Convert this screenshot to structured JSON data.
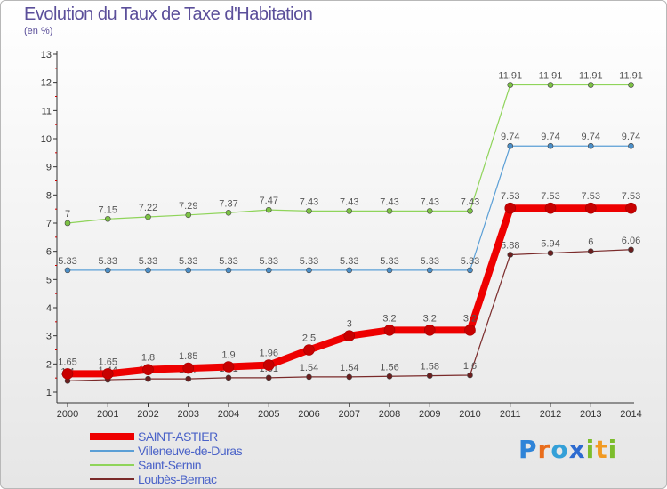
{
  "header": {
    "title": "Evolution du Taux de Taxe d'Habitation",
    "unit": "(en %)"
  },
  "brand": {
    "letters": [
      "P",
      "r",
      "o",
      "x",
      "i",
      "t",
      "i"
    ],
    "colors": [
      "#2f84d8",
      "#e96d1c",
      "#34a0d8",
      "#2d6bd0",
      "#7cbd2c",
      "#f19a22",
      "#7cbd2c"
    ]
  },
  "chart_data": {
    "type": "line",
    "x": [
      "2000",
      "2001",
      "2002",
      "2003",
      "2004",
      "2005",
      "2006",
      "2007",
      "2008",
      "2009",
      "2010",
      "2011",
      "2012",
      "2013",
      "2014"
    ],
    "ylim": [
      1,
      13
    ],
    "yticks": [
      1,
      2,
      3,
      4,
      5,
      6,
      7,
      8,
      9,
      10,
      11,
      12,
      13
    ],
    "ylabel": "(en %)",
    "title": "Evolution du Taux de Taxe d'Habitation",
    "grid": false,
    "legend": "bottom-left",
    "series": [
      {
        "name": "Saint-Sernin",
        "color": "#8fd45a",
        "marker": "#7cc244",
        "width": 1.2,
        "r": 3,
        "values": [
          7,
          7.15,
          7.22,
          7.29,
          7.37,
          7.47,
          7.43,
          7.43,
          7.43,
          7.43,
          7.43,
          11.91,
          11.91,
          11.91,
          11.91
        ],
        "labels": [
          "7",
          "7.15",
          "7.22",
          "7.29",
          "7.37",
          "7.47",
          "7.43",
          "7.43",
          "7.43",
          "7.43",
          "7.43",
          "11.91",
          "11.91",
          "11.91",
          "11.91"
        ]
      },
      {
        "name": "Villeneuve-de-Duras",
        "color": "#5b9fd6",
        "marker": "#4c8fc8",
        "width": 1.2,
        "r": 3,
        "values": [
          5.33,
          5.33,
          5.33,
          5.33,
          5.33,
          5.33,
          5.33,
          5.33,
          5.33,
          5.33,
          5.33,
          9.74,
          9.74,
          9.74,
          9.74
        ],
        "labels": [
          "5.33",
          "5.33",
          "5.33",
          "5.33",
          "5.33",
          "5.33",
          "5.33",
          "5.33",
          "5.33",
          "5.33",
          "5.33",
          "9.74",
          "9.74",
          "9.74",
          "9.74"
        ]
      },
      {
        "name": "Loubès-Bernac",
        "color": "#7a2a2a",
        "marker": "#6b1f1f",
        "width": 1.2,
        "r": 3,
        "values": [
          1.4,
          1.44,
          1.47,
          1.47,
          1.51,
          1.51,
          1.54,
          1.54,
          1.56,
          1.58,
          1.6,
          5.88,
          5.94,
          6,
          6.06
        ],
        "labels": [
          "1.4",
          "1.44",
          "1.47",
          "1.47",
          "1.51",
          "1.51",
          "1.54",
          "1.54",
          "1.56",
          "1.58",
          "1.6",
          "5.88",
          "5.94",
          "6",
          "6.06"
        ]
      },
      {
        "name": "SAINT-ASTIER",
        "color": "#ee0000",
        "marker": "#c80000",
        "width": 8,
        "r": 6,
        "values": [
          1.65,
          1.65,
          1.8,
          1.85,
          1.9,
          1.96,
          2.5,
          3,
          3.2,
          3.2,
          3.2,
          7.53,
          7.53,
          7.53,
          7.53
        ],
        "labels": [
          "1.65",
          "1.65",
          "1.8",
          "1.85",
          "1.9",
          "1.96",
          "2.5",
          "3",
          "3.2",
          "3.2",
          "3.2",
          "7.53",
          "7.53",
          "7.53",
          "7.53"
        ]
      }
    ],
    "legend_order": [
      "SAINT-ASTIER",
      "Villeneuve-de-Duras",
      "Saint-Sernin",
      "Loubès-Bernac"
    ]
  }
}
